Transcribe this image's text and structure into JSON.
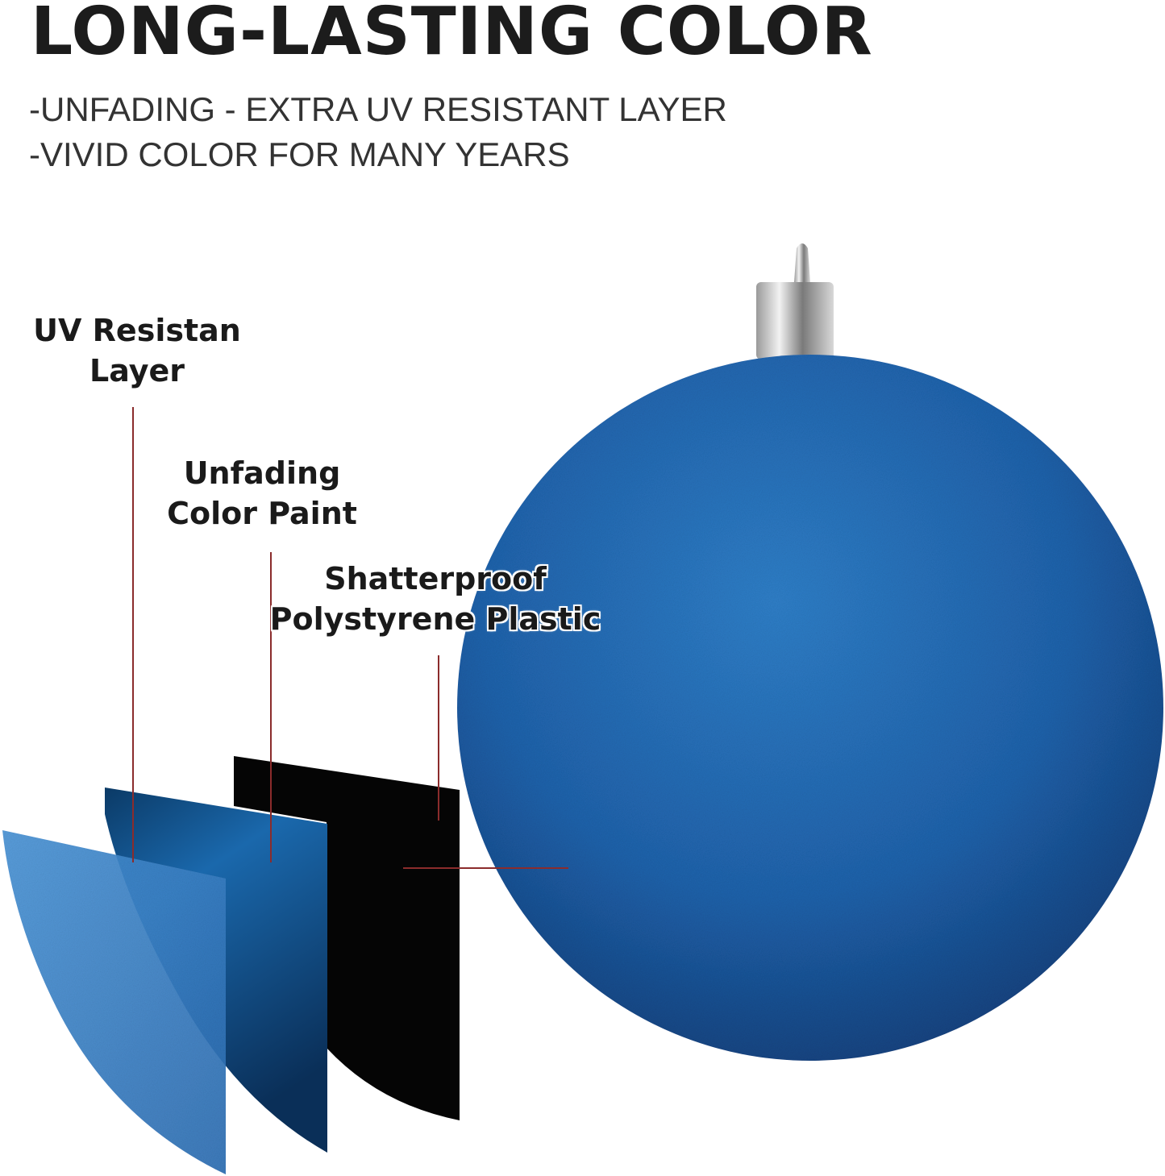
{
  "header": {
    "title": "LONG-LASTING COLOR",
    "features": [
      "-UNFADING - EXTRA UV RESISTANT LAYER",
      "-VIVID COLOR FOR MANY YEARS"
    ]
  },
  "layers": [
    {
      "label_line1": "UV Resistan",
      "label_line2": "Layer"
    },
    {
      "label_line1": "Unfading",
      "label_line2": "Color Paint"
    },
    {
      "label_line1": "Shatterproof",
      "label_line2": "Polystyrene Plastic"
    }
  ],
  "colors": {
    "ornament_blue": "#1f5fa8",
    "glitter_light": "#3f8fd6",
    "leader_line": "#8b2c2c",
    "inner_layer": "#000000"
  }
}
